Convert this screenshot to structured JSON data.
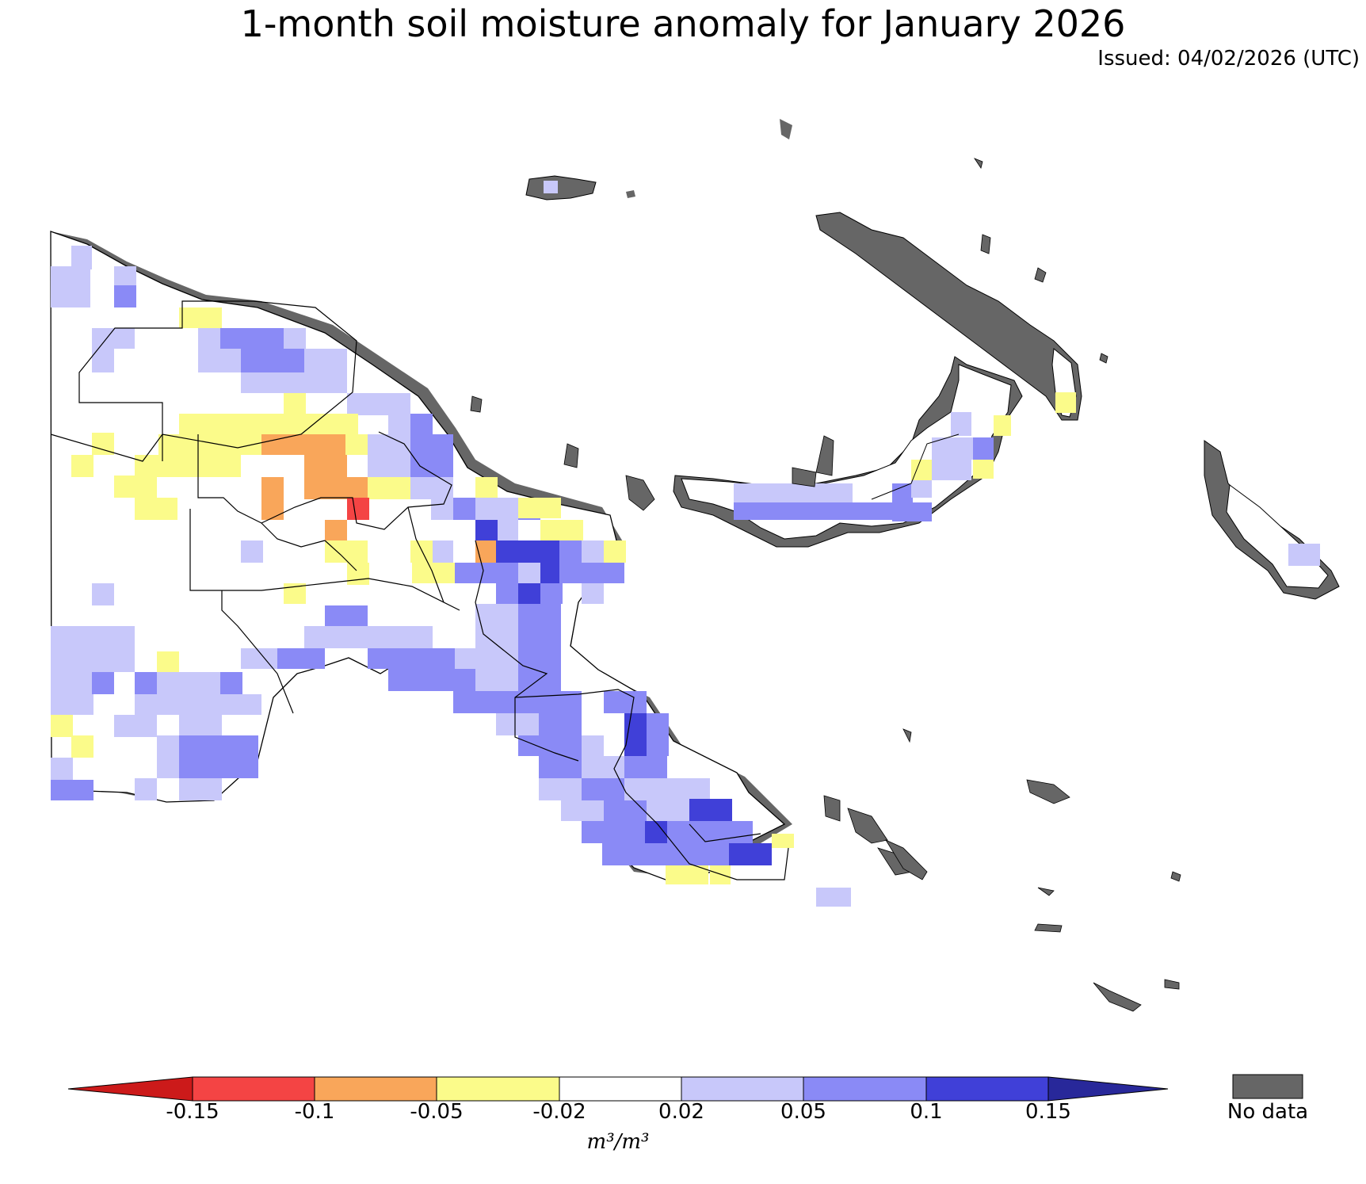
{
  "title": "1-month soil moisture anomaly for January 2026",
  "issued": "Issued: 04/02/2026 (UTC)",
  "colorbar": {
    "unit": "m³/m³",
    "ticks": [
      "-0.15",
      "-0.1",
      "-0.05",
      "-0.02",
      "0.02",
      "0.05",
      "0.1",
      "0.15"
    ],
    "colors": {
      "below_min": "#cc1a1a",
      "b1": "#f44444",
      "b2": "#f9a65a",
      "b3": "#fbfb8a",
      "b4": "#ffffff",
      "b5": "#c8c8fa",
      "b6": "#8a8af6",
      "b7": "#4040d8",
      "above_max": "#28289a"
    },
    "no_data_label": "No data",
    "no_data_color": "#666666"
  }
}
